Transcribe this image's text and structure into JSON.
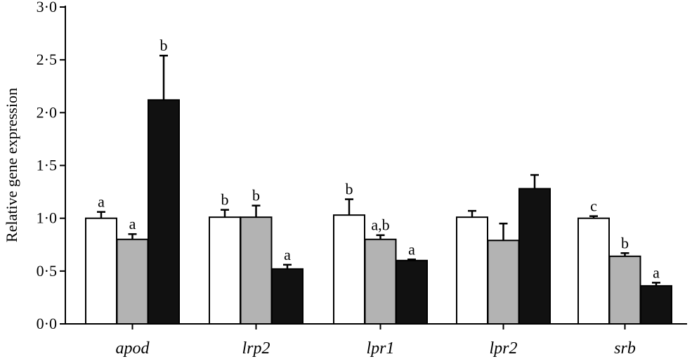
{
  "chart_data": {
    "type": "bar",
    "ylabel": "Relative gene expression",
    "xlabel": "",
    "ylim": [
      0,
      3
    ],
    "yticks": [
      "0·0",
      "0·5",
      "1·0",
      "1·5",
      "2·0",
      "2·5",
      "3·0"
    ],
    "categories": [
      "apod",
      "lrp2",
      "lpr1",
      "lpr2",
      "srb"
    ],
    "series": [
      {
        "color": "#ffffff",
        "values": [
          1.0,
          1.01,
          1.03,
          1.01,
          1.0
        ],
        "errors": [
          0.06,
          0.07,
          0.15,
          0.06,
          0.02
        ],
        "labels": [
          "a",
          "b",
          "b",
          "",
          "c"
        ]
      },
      {
        "color": "#b3b3b3",
        "values": [
          0.8,
          1.01,
          0.8,
          0.79,
          0.64
        ],
        "errors": [
          0.05,
          0.11,
          0.04,
          0.16,
          0.03
        ],
        "labels": [
          "a",
          "b",
          "a,b",
          "",
          "b"
        ]
      },
      {
        "color": "#111111",
        "values": [
          2.12,
          0.52,
          0.6,
          1.28,
          0.36
        ],
        "errors": [
          0.42,
          0.04,
          0.01,
          0.13,
          0.03
        ],
        "labels": [
          "b",
          "a",
          "a",
          "",
          "a"
        ]
      }
    ]
  }
}
